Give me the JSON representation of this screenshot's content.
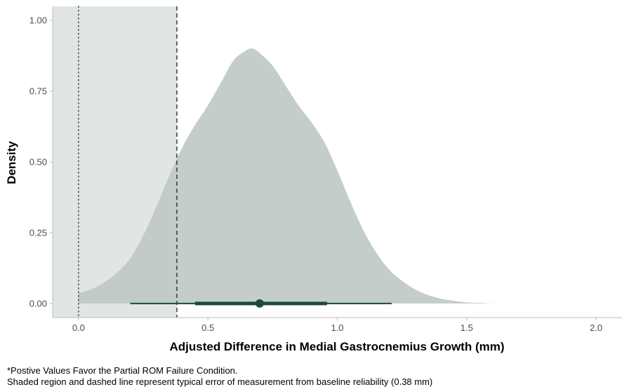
{
  "chart_data": {
    "type": "area",
    "xlabel": "Adjusted Difference in Medial Gastrocnemius Growth (mm)",
    "ylabel": "Density",
    "xlim": [
      -0.1,
      2.1
    ],
    "ylim": [
      -0.05,
      1.05
    ],
    "x_ticks": [
      {
        "value": 0.0,
        "label": "0.0"
      },
      {
        "value": 0.5,
        "label": "0.5"
      },
      {
        "value": 1.0,
        "label": "1.0"
      },
      {
        "value": 1.5,
        "label": "1.5"
      },
      {
        "value": 2.0,
        "label": "2.0"
      }
    ],
    "y_ticks": [
      {
        "value": 0.0,
        "label": "0.00"
      },
      {
        "value": 0.25,
        "label": "0.25"
      },
      {
        "value": 0.5,
        "label": "0.50"
      },
      {
        "value": 0.75,
        "label": "0.75"
      },
      {
        "value": 1.0,
        "label": "1.00"
      }
    ],
    "grid": false,
    "density": {
      "x": [
        0.0,
        0.05,
        0.1,
        0.15,
        0.2,
        0.25,
        0.3,
        0.35,
        0.4,
        0.45,
        0.5,
        0.55,
        0.6,
        0.65,
        0.675,
        0.7,
        0.75,
        0.8,
        0.85,
        0.9,
        0.95,
        1.0,
        1.05,
        1.1,
        1.15,
        1.2,
        1.25,
        1.3,
        1.35,
        1.4,
        1.45,
        1.5,
        1.55,
        1.6
      ],
      "y": [
        0.037,
        0.05,
        0.075,
        0.11,
        0.16,
        0.24,
        0.34,
        0.45,
        0.55,
        0.63,
        0.7,
        0.78,
        0.86,
        0.895,
        0.9,
        0.885,
        0.84,
        0.77,
        0.7,
        0.64,
        0.57,
        0.47,
        0.36,
        0.26,
        0.18,
        0.12,
        0.08,
        0.05,
        0.03,
        0.017,
        0.009,
        0.004,
        0.002,
        0.0
      ]
    },
    "interval": {
      "point": 0.7,
      "inner": [
        0.45,
        0.96
      ],
      "outer": [
        0.2,
        1.21
      ]
    },
    "reference_lines": {
      "zero_dotted": 0.0,
      "error_dashed": 0.38
    },
    "shaded_region": [
      -0.1,
      0.38
    ],
    "colors": {
      "density_fill": "#c0c9c6",
      "shaded_region": "#e1e6e4",
      "interval": "#1b4a3b",
      "ref_line": "#3a3a3a"
    }
  },
  "captions": {
    "line1": "*Postive Values Favor the Partial ROM Failure Condition.",
    "line2": "Shaded region and dashed line represent typical error of measurement from baseline reliability (0.38 mm)"
  }
}
